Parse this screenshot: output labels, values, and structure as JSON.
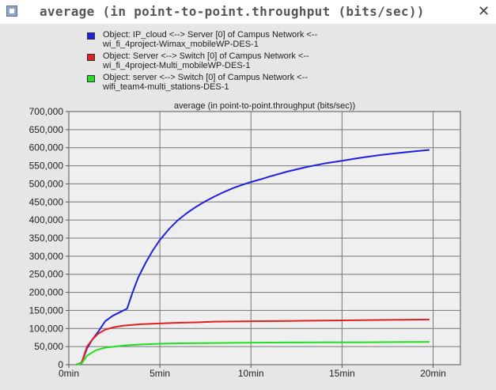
{
  "window": {
    "title": "average (in point-to-point.throughput (bits/sec))",
    "close_glyph": "✕",
    "background": "#e6e6e6"
  },
  "legend": {
    "items": [
      {
        "line1": "Object: IP_cloud <--> Server [0] of Campus Network <--",
        "line2": "wi_fi_4project-Wimax_mobileWP-DES-1",
        "color": "#2020e0"
      },
      {
        "line1": "Object: Server <--> Switch [0] of Campus Network <--",
        "line2": "wi_fi_4project-Multi_mobileWP-DES-1",
        "color": "#e02020"
      },
      {
        "line1": "Object: server <--> Switch [0] of Campus Network <--",
        "line2": "wifi_team4-multi_stations-DES-1",
        "color": "#20e020"
      }
    ]
  },
  "chart_data": {
    "type": "line",
    "title": "average (in point-to-point.throughput (bits/sec))",
    "xlabel": "",
    "ylabel": "",
    "xlim": [
      0,
      21.5
    ],
    "ylim": [
      0,
      700000
    ],
    "x_ticks": [
      0,
      5,
      10,
      15,
      20
    ],
    "x_tick_labels": [
      "0min",
      "5min",
      "10min",
      "15min",
      "20min"
    ],
    "y_ticks": [
      0,
      50000,
      100000,
      150000,
      200000,
      250000,
      300000,
      350000,
      400000,
      450000,
      500000,
      550000,
      600000,
      650000,
      700000
    ],
    "y_tick_labels": [
      "0",
      "50,000",
      "100,000",
      "150,000",
      "200,000",
      "250,000",
      "300,000",
      "350,000",
      "400,000",
      "450,000",
      "500,000",
      "550,000",
      "600,000",
      "650,000",
      "700,000"
    ],
    "grid": true,
    "background": "#efefef",
    "series": [
      {
        "name": "Object: IP_cloud <--> Server [0] of Campus Network <-- wi_fi_4project-Wimax_mobileWP-DES-1",
        "color": "#2020e0",
        "x": [
          0.4,
          0.7,
          1.0,
          1.3,
          1.6,
          2.0,
          2.4,
          2.8,
          3.2,
          3.5,
          3.8,
          4.2,
          4.6,
          5.0,
          5.5,
          6.0,
          6.5,
          7.0,
          7.5,
          8.0,
          8.5,
          9.0,
          9.5,
          10.0,
          10.5,
          11.0,
          12.0,
          13.0,
          14.0,
          15.0,
          16.0,
          17.0,
          18.0,
          19.0,
          19.8
        ],
        "values": [
          0,
          5000,
          45000,
          70000,
          90000,
          120000,
          135000,
          145000,
          155000,
          200000,
          240000,
          280000,
          315000,
          345000,
          375000,
          400000,
          420000,
          437000,
          452000,
          465000,
          477000,
          488000,
          497000,
          505000,
          512000,
          520000,
          534000,
          546000,
          556000,
          564000,
          572000,
          579000,
          585000,
          590000,
          594000
        ]
      },
      {
        "name": "Object: Server <--> Switch [0] of Campus Network <-- wi_fi_4project-Multi_mobileWP-DES-1",
        "color": "#e02020",
        "x": [
          0.4,
          0.7,
          1.0,
          1.3,
          1.6,
          2.0,
          2.5,
          3.0,
          4.0,
          5.0,
          6.0,
          7.0,
          8.0,
          10.0,
          12.0,
          14.0,
          16.0,
          18.0,
          19.8
        ],
        "values": [
          0,
          5000,
          50000,
          70000,
          85000,
          97000,
          104000,
          108000,
          112000,
          114000,
          116000,
          117000,
          119000,
          120000,
          121000,
          122000,
          123000,
          124000,
          125000
        ]
      },
      {
        "name": "Object: server <--> Switch [0] of Campus Network <-- wifi_team4-multi_stations-DES-1",
        "color": "#20e020",
        "x": [
          0.4,
          0.7,
          1.0,
          1.5,
          2.0,
          2.5,
          3.0,
          4.0,
          5.0,
          6.0,
          8.0,
          10.0,
          12.0,
          14.0,
          16.0,
          18.0,
          19.8
        ],
        "values": [
          0,
          3000,
          25000,
          40000,
          47000,
          50000,
          53000,
          56000,
          58000,
          59000,
          60000,
          61000,
          61500,
          62000,
          62000,
          62500,
          63000
        ]
      }
    ]
  }
}
